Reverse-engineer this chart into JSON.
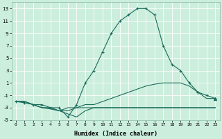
{
  "xlabel": "Humidex (Indice chaleur)",
  "ylabel": "",
  "background_color": "#cceedd",
  "grid_color": "#aaddcc",
  "line_color": "#1a6b5a",
  "x": [
    0,
    1,
    2,
    3,
    4,
    5,
    6,
    7,
    8,
    9,
    10,
    11,
    12,
    13,
    14,
    15,
    16,
    17,
    18,
    19,
    20,
    21,
    22,
    23
  ],
  "line1": [
    -2,
    -2.2,
    -2.5,
    -2.5,
    -3,
    -3,
    -4.5,
    -2.5,
    1,
    3,
    6,
    9,
    11,
    12,
    13,
    13,
    12,
    7,
    4,
    3,
    1,
    -0.5,
    -1,
    -1.5
  ],
  "line2": [
    -2,
    -2,
    -2.5,
    -3,
    -3,
    -3.5,
    -3,
    -3,
    -2.5,
    -2.5,
    -2,
    -1.5,
    -1,
    -0.5,
    0,
    0.5,
    0.8,
    1,
    1,
    1,
    0.5,
    -0.5,
    -1.5,
    -1.5
  ],
  "line3": [
    -2,
    -2,
    -2.5,
    -3,
    -3,
    -3.5,
    -3.5,
    -3,
    -3,
    -3,
    -3,
    -3,
    -3,
    -3,
    -3,
    -3,
    -3,
    -3,
    -3,
    -3,
    -3,
    -3,
    -3,
    -3
  ],
  "line4": [
    -2,
    -2,
    -2.5,
    -3,
    -3.2,
    -3.5,
    -4,
    -4.5,
    -3.5,
    -3,
    -3,
    -3,
    -3,
    -3,
    -3,
    -3,
    -3,
    -3,
    -3,
    -3,
    -3,
    -3,
    -3,
    -3
  ],
  "xlim": [
    -0.5,
    23.5
  ],
  "ylim": [
    -5,
    14
  ],
  "yticks": [
    -5,
    -3,
    -1,
    1,
    3,
    5,
    7,
    9,
    11,
    13
  ],
  "xticks": [
    0,
    1,
    2,
    3,
    4,
    5,
    6,
    7,
    8,
    9,
    10,
    11,
    12,
    13,
    14,
    15,
    16,
    17,
    18,
    19,
    20,
    21,
    22,
    23
  ],
  "marker": "+"
}
